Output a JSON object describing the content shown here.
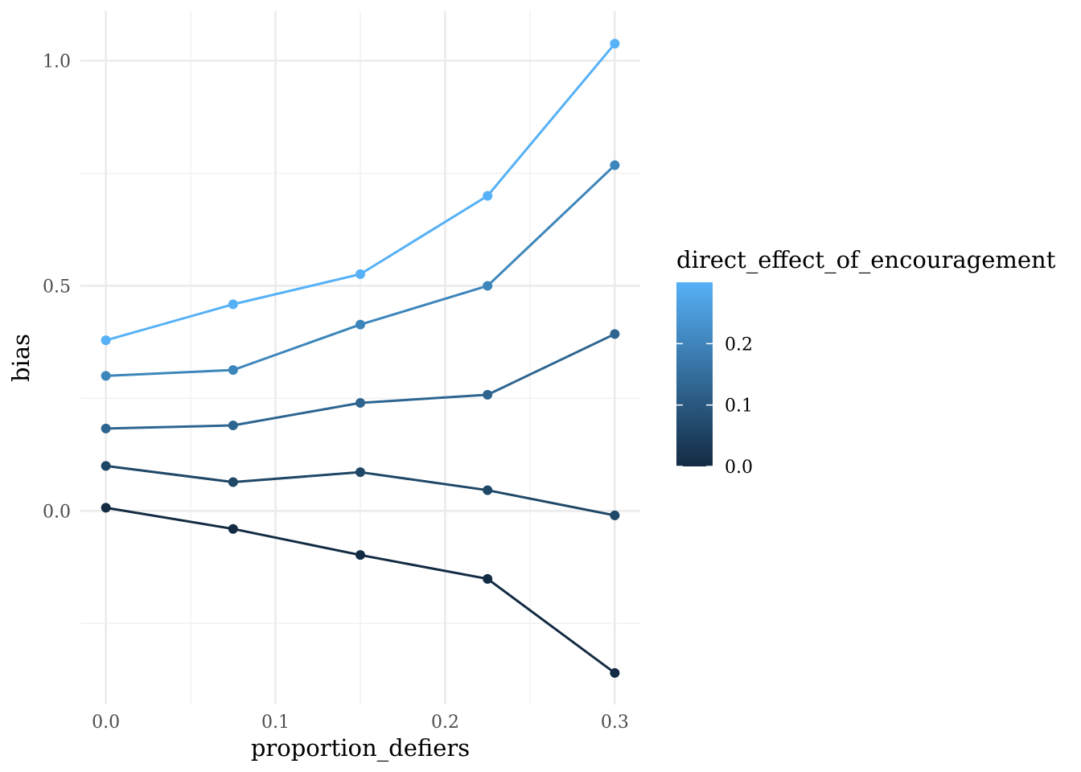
{
  "chart_data": {
    "type": "line",
    "xlabel": "proportion_defiers",
    "ylabel": "bias",
    "xlim": [
      -0.015,
      0.315
    ],
    "ylim": [
      -0.43,
      1.11
    ],
    "x_ticks": [
      0.0,
      0.1,
      0.2,
      0.3
    ],
    "x_tick_labels": [
      "0.0",
      "0.1",
      "0.2",
      "0.3"
    ],
    "y_ticks": [
      0.0,
      0.5,
      1.0
    ],
    "y_tick_labels": [
      "0.0",
      "0.5",
      "1.0"
    ],
    "x": [
      0.0,
      0.075,
      0.15,
      0.225,
      0.3
    ],
    "series": [
      {
        "color_value": 0.0,
        "color": "#132b43",
        "values": [
          0.007,
          -0.04,
          -0.098,
          -0.151,
          -0.36
        ]
      },
      {
        "color_value": 0.075,
        "color": "#1f4766",
        "values": [
          0.1,
          0.064,
          0.086,
          0.046,
          -0.01
        ]
      },
      {
        "color_value": 0.15,
        "color": "#2d6590",
        "values": [
          0.183,
          0.19,
          0.24,
          0.258,
          0.393
        ]
      },
      {
        "color_value": 0.225,
        "color": "#3d86bb",
        "values": [
          0.3,
          0.313,
          0.414,
          0.5,
          0.768
        ]
      },
      {
        "color_value": 0.3,
        "color": "#56b1f7",
        "values": [
          0.379,
          0.459,
          0.526,
          0.7,
          1.038
        ]
      }
    ],
    "legend": {
      "title": "direct_effect_of_encouragement",
      "type": "colorbar",
      "placement": "right",
      "low_color": "#132b43",
      "high_color": "#56b1f7",
      "range": [
        0.0,
        0.3
      ],
      "ticks": [
        0.0,
        0.1,
        0.2
      ],
      "tick_labels": [
        "0.0",
        "0.1",
        "0.2"
      ]
    },
    "grid": true
  }
}
